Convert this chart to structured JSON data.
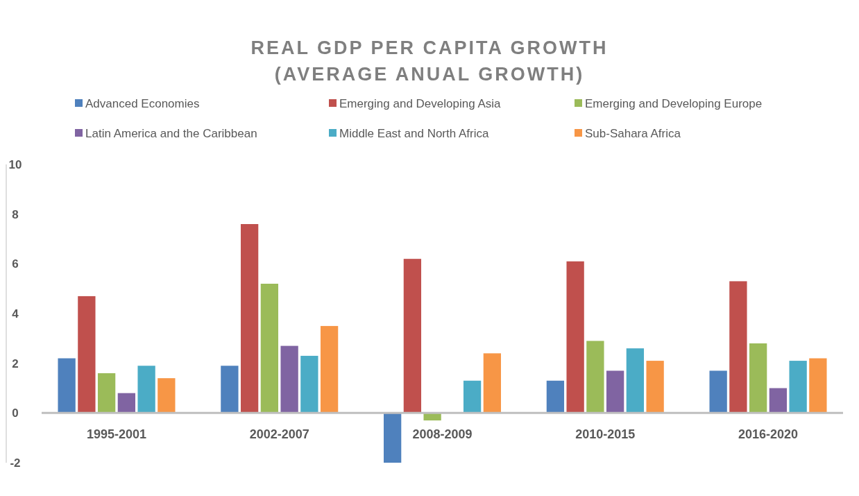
{
  "chart_data": {
    "type": "bar",
    "title": "REAL GDP PER CAPITA GROWTH\n(AVERAGE ANUAL GROWTH)",
    "categories": [
      "1995-2001",
      "2002-2007",
      "2008-2009",
      "2010-2015",
      "2016-2020"
    ],
    "series": [
      {
        "name": "Advanced Economies",
        "color": "#4f81bd",
        "values": [
          2.2,
          1.9,
          -2.0,
          1.3,
          1.7
        ]
      },
      {
        "name": "Emerging and Developing Asia",
        "color": "#c0504d",
        "values": [
          4.7,
          7.6,
          6.2,
          6.1,
          5.3
        ]
      },
      {
        "name": "Emerging and Developing Europe",
        "color": "#9bbb59",
        "values": [
          1.6,
          5.2,
          -0.3,
          2.9,
          2.8
        ]
      },
      {
        "name": "Latin America and the Caribbean",
        "color": "#8064a2",
        "values": [
          0.8,
          2.7,
          null,
          1.7,
          1.0
        ]
      },
      {
        "name": "Middle East and North Africa",
        "color": "#4bacc6",
        "values": [
          1.9,
          2.3,
          1.3,
          2.6,
          2.1
        ]
      },
      {
        "name": "Sub-Sahara Africa",
        "color": "#f79646",
        "values": [
          1.4,
          3.5,
          2.4,
          2.1,
          2.2
        ]
      }
    ],
    "ylim": [
      -2,
      10
    ],
    "yticks": [
      -2,
      0,
      2,
      4,
      6,
      8,
      10
    ],
    "grid": false,
    "legend": "top"
  }
}
